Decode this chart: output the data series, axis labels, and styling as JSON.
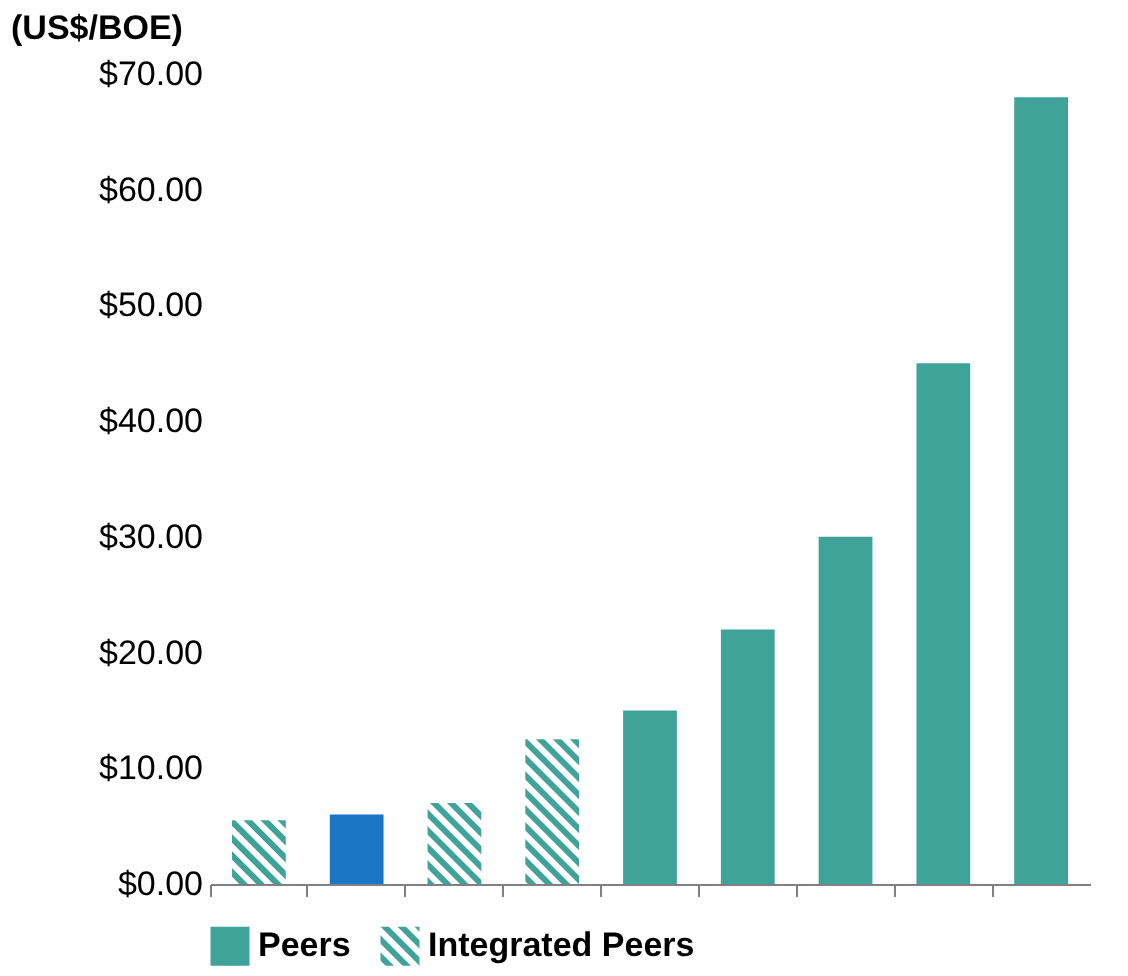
{
  "chart_data": {
    "type": "bar",
    "ylabel": "(US$/BOE)",
    "categories": [
      null,
      null,
      null,
      null,
      null,
      null,
      null,
      null,
      null
    ],
    "series": [
      {
        "name": "Peers",
        "color": "#3fa39a",
        "values": [
          null,
          null,
          null,
          null,
          15,
          22,
          30,
          45,
          68
        ]
      },
      {
        "name": "Integrated Peers",
        "color": "#3fa39a",
        "values": [
          5.5,
          null,
          7,
          12.5,
          null,
          null,
          null,
          null,
          null
        ]
      },
      {
        "color": "#1a75c4",
        "values": [
          null,
          6,
          null,
          null,
          null,
          null,
          null,
          null,
          null
        ]
      }
    ],
    "ylim": [
      0,
      70
    ],
    "yticks": [
      {
        "value": 0,
        "label": "$0.00"
      },
      {
        "value": 10,
        "label": "$10.00"
      },
      {
        "value": 20,
        "label": "$20.00"
      },
      {
        "value": 30,
        "label": "$30.00"
      },
      {
        "value": 40,
        "label": "$40.00"
      },
      {
        "value": 50,
        "label": "$50.00"
      },
      {
        "value": 60,
        "label": "$60.00"
      },
      {
        "value": 70,
        "label": "$70.00"
      }
    ],
    "tick_labels": "y",
    "grid": false,
    "legend": "bottom"
  }
}
